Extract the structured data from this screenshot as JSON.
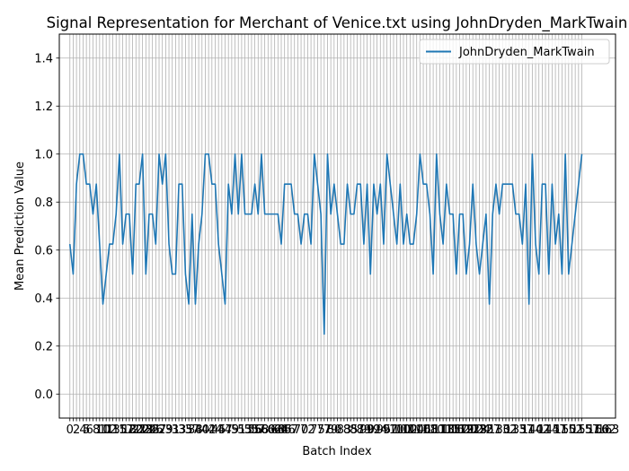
{
  "chart_data": {
    "type": "line",
    "title": "Signal Representation for Merchant of Venice.txt using JohnDryden_MarkTwain",
    "xlabel": "Batch Index",
    "ylabel": "Mean Prediction Value",
    "ylim": [
      -0.1,
      1.5
    ],
    "xlim": [
      -3.2,
      165.2
    ],
    "yticks": [
      0.0,
      0.2,
      0.4,
      0.6,
      0.8,
      1.0,
      1.2,
      1.4
    ],
    "ytick_labels": [
      "0.0",
      "0.2",
      "0.4",
      "0.6",
      "0.8",
      "1.0",
      "1.2",
      "1.4"
    ],
    "grid": true,
    "legend_position": "top-right",
    "series": [
      {
        "name": "JohnDryden_MarkTwain",
        "color": "#1f77b4",
        "values": [
          0.625,
          0.5,
          0.875,
          1.0,
          1.0,
          0.875,
          0.875,
          0.75,
          0.875,
          0.625,
          0.375,
          0.5,
          0.625,
          0.625,
          0.75,
          1.0,
          0.625,
          0.75,
          0.75,
          0.5,
          0.875,
          0.875,
          1.0,
          0.5,
          0.75,
          0.75,
          0.625,
          1.0,
          0.875,
          1.0,
          0.625,
          0.5,
          0.5,
          0.875,
          0.875,
          0.5,
          0.375,
          0.75,
          0.375,
          0.625,
          0.75,
          1.0,
          1.0,
          0.875,
          0.875,
          0.625,
          0.5,
          0.375,
          0.875,
          0.75,
          1.0,
          0.75,
          1.0,
          0.75,
          0.75,
          0.75,
          0.875,
          0.75,
          1.0,
          0.75,
          0.75,
          0.75,
          0.75,
          0.75,
          0.625,
          0.875,
          0.875,
          0.875,
          0.75,
          0.75,
          0.625,
          0.75,
          0.75,
          0.625,
          1.0,
          0.875,
          0.75,
          0.25,
          1.0,
          0.75,
          0.875,
          0.75,
          0.625,
          0.625,
          0.875,
          0.75,
          0.75,
          0.875,
          0.875,
          0.625,
          0.875,
          0.5,
          0.875,
          0.75,
          0.875,
          0.625,
          1.0,
          0.875,
          0.75,
          0.625,
          0.875,
          0.625,
          0.75,
          0.625,
          0.625,
          0.75,
          1.0,
          0.875,
          0.875,
          0.75,
          0.5,
          1.0,
          0.75,
          0.625,
          0.875,
          0.75,
          0.75,
          0.5,
          0.75,
          0.75,
          0.5,
          0.625,
          0.875,
          0.625,
          0.5,
          0.625,
          0.75,
          0.375,
          0.75,
          0.875,
          0.75,
          0.875,
          0.875,
          0.875,
          0.875,
          0.75,
          0.75,
          0.625,
          0.875,
          0.375,
          1.0,
          0.625,
          0.5,
          0.875,
          0.875,
          0.5,
          0.875,
          0.625,
          0.75,
          0.5,
          1.0,
          0.5,
          0.625,
          0.75,
          0.875,
          1.0
        ]
      }
    ],
    "x_tick_labels_visible": [
      "0",
      "2",
      "4",
      "5",
      "6",
      "8",
      "10",
      "11",
      "12",
      "13",
      "15",
      "17",
      "18",
      "20",
      "21",
      "22",
      "23",
      "24",
      "25",
      "26",
      "27",
      "29",
      "31",
      "33",
      "35",
      "37",
      "38",
      "40",
      "42",
      "44",
      "45",
      "47",
      "49",
      "51",
      "53",
      "55",
      "56",
      "57",
      "58",
      "60",
      "62",
      "63",
      "64",
      "65",
      "66",
      "67",
      "70",
      "72",
      "75",
      "77",
      "79",
      "80",
      "83",
      "85",
      "87",
      "89",
      "90",
      "92",
      "94",
      "95",
      "97",
      "100",
      "101",
      "102",
      "104",
      "106",
      "108",
      "110",
      "111",
      "113",
      "115",
      "116",
      "117",
      "119",
      "120",
      "121",
      "123",
      "124",
      "125",
      "127",
      "130",
      "132",
      "135",
      "137",
      "140",
      "142",
      "145",
      "147",
      "150",
      "152",
      "155",
      "157",
      "160",
      "162",
      "163"
    ]
  }
}
